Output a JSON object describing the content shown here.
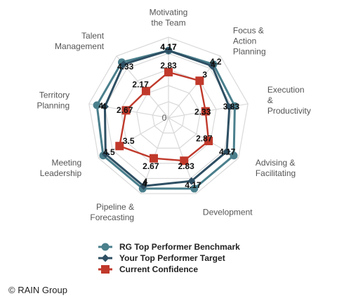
{
  "chart_data": {
    "type": "radar",
    "categories": [
      [
        "Motivating",
        "the Team"
      ],
      [
        "Focus &",
        "Action",
        "Planning"
      ],
      [
        "Execution",
        "&",
        "Productivity"
      ],
      [
        "Advising &",
        "Facilitating"
      ],
      [
        "Development"
      ],
      [
        "Pipeline &",
        "Forecasting"
      ],
      [
        "Meeting",
        "Leadership"
      ],
      [
        "Territory",
        "Planning"
      ],
      [
        "Talent",
        "Management"
      ]
    ],
    "rmax": 5,
    "grid_levels": 5,
    "center_label": "0",
    "series": [
      {
        "name": "RG Top Performer Benchmark",
        "color": "#4a7f8c",
        "marker": "circle",
        "values": [
          4.17,
          4.33,
          4.17,
          4.67,
          4.67,
          4.67,
          4.67,
          4.5,
          4.5
        ]
      },
      {
        "name": "Your Top Performer Target",
        "color": "#2e4f63",
        "marker": "diamond",
        "values": [
          4.17,
          4.2,
          3.83,
          4.17,
          4.17,
          4.5,
          4.5,
          4.0,
          4.33
        ]
      },
      {
        "name": "Current Confidence",
        "color": "#c0392b",
        "marker": "square",
        "values": [
          2.83,
          3.0,
          2.33,
          2.87,
          2.83,
          2.67,
          3.5,
          2.67,
          2.17
        ]
      }
    ],
    "data_labels": [
      {
        "text": "4.17",
        "axis": 0,
        "r": 4.4
      },
      {
        "text": "4.17",
        "axis": 0,
        "r": 4.4
      },
      {
        "text": "4.2",
        "axis": 1,
        "r": 4.55
      },
      {
        "text": "4",
        "axis": 1,
        "r": 4.3
      },
      {
        "text": "3.83",
        "axis": 2,
        "r": 3.95
      },
      {
        "text": "4.17",
        "axis": 3,
        "r": 4.2
      },
      {
        "text": "4.17",
        "axis": 4,
        "r": 4.45
      },
      {
        "text": "4",
        "axis": 5,
        "r": 4.35
      },
      {
        "text": "4",
        "axis": 5,
        "r": 4.2
      },
      {
        "text": "4.5",
        "axis": 6,
        "r": 4.25
      },
      {
        "text": "4",
        "axis": 7,
        "r": 4.25
      },
      {
        "text": "4",
        "axis": 7,
        "r": 4.05
      },
      {
        "text": "4.33",
        "axis": 8,
        "r": 4.15
      },
      {
        "text": "2.83",
        "axis": 0,
        "r": 3.25
      },
      {
        "text": "3",
        "axis": 1,
        "r": 3.5
      },
      {
        "text": "2.33",
        "axis": 2,
        "r": 2.15
      },
      {
        "text": "2.87",
        "axis": 3,
        "r": 2.55
      },
      {
        "text": "2.83",
        "axis": 4,
        "r": 3.2
      },
      {
        "text": "2.67",
        "axis": 5,
        "r": 3.2
      },
      {
        "text": "3.5",
        "axis": 6,
        "r": 2.85
      },
      {
        "text": "2.67",
        "axis": 7,
        "r": 2.75
      },
      {
        "text": "2.17",
        "axis": 8,
        "r": 2.7
      }
    ],
    "legend_position": "bottom"
  },
  "footer": {
    "copyright": "© RAIN Group"
  }
}
